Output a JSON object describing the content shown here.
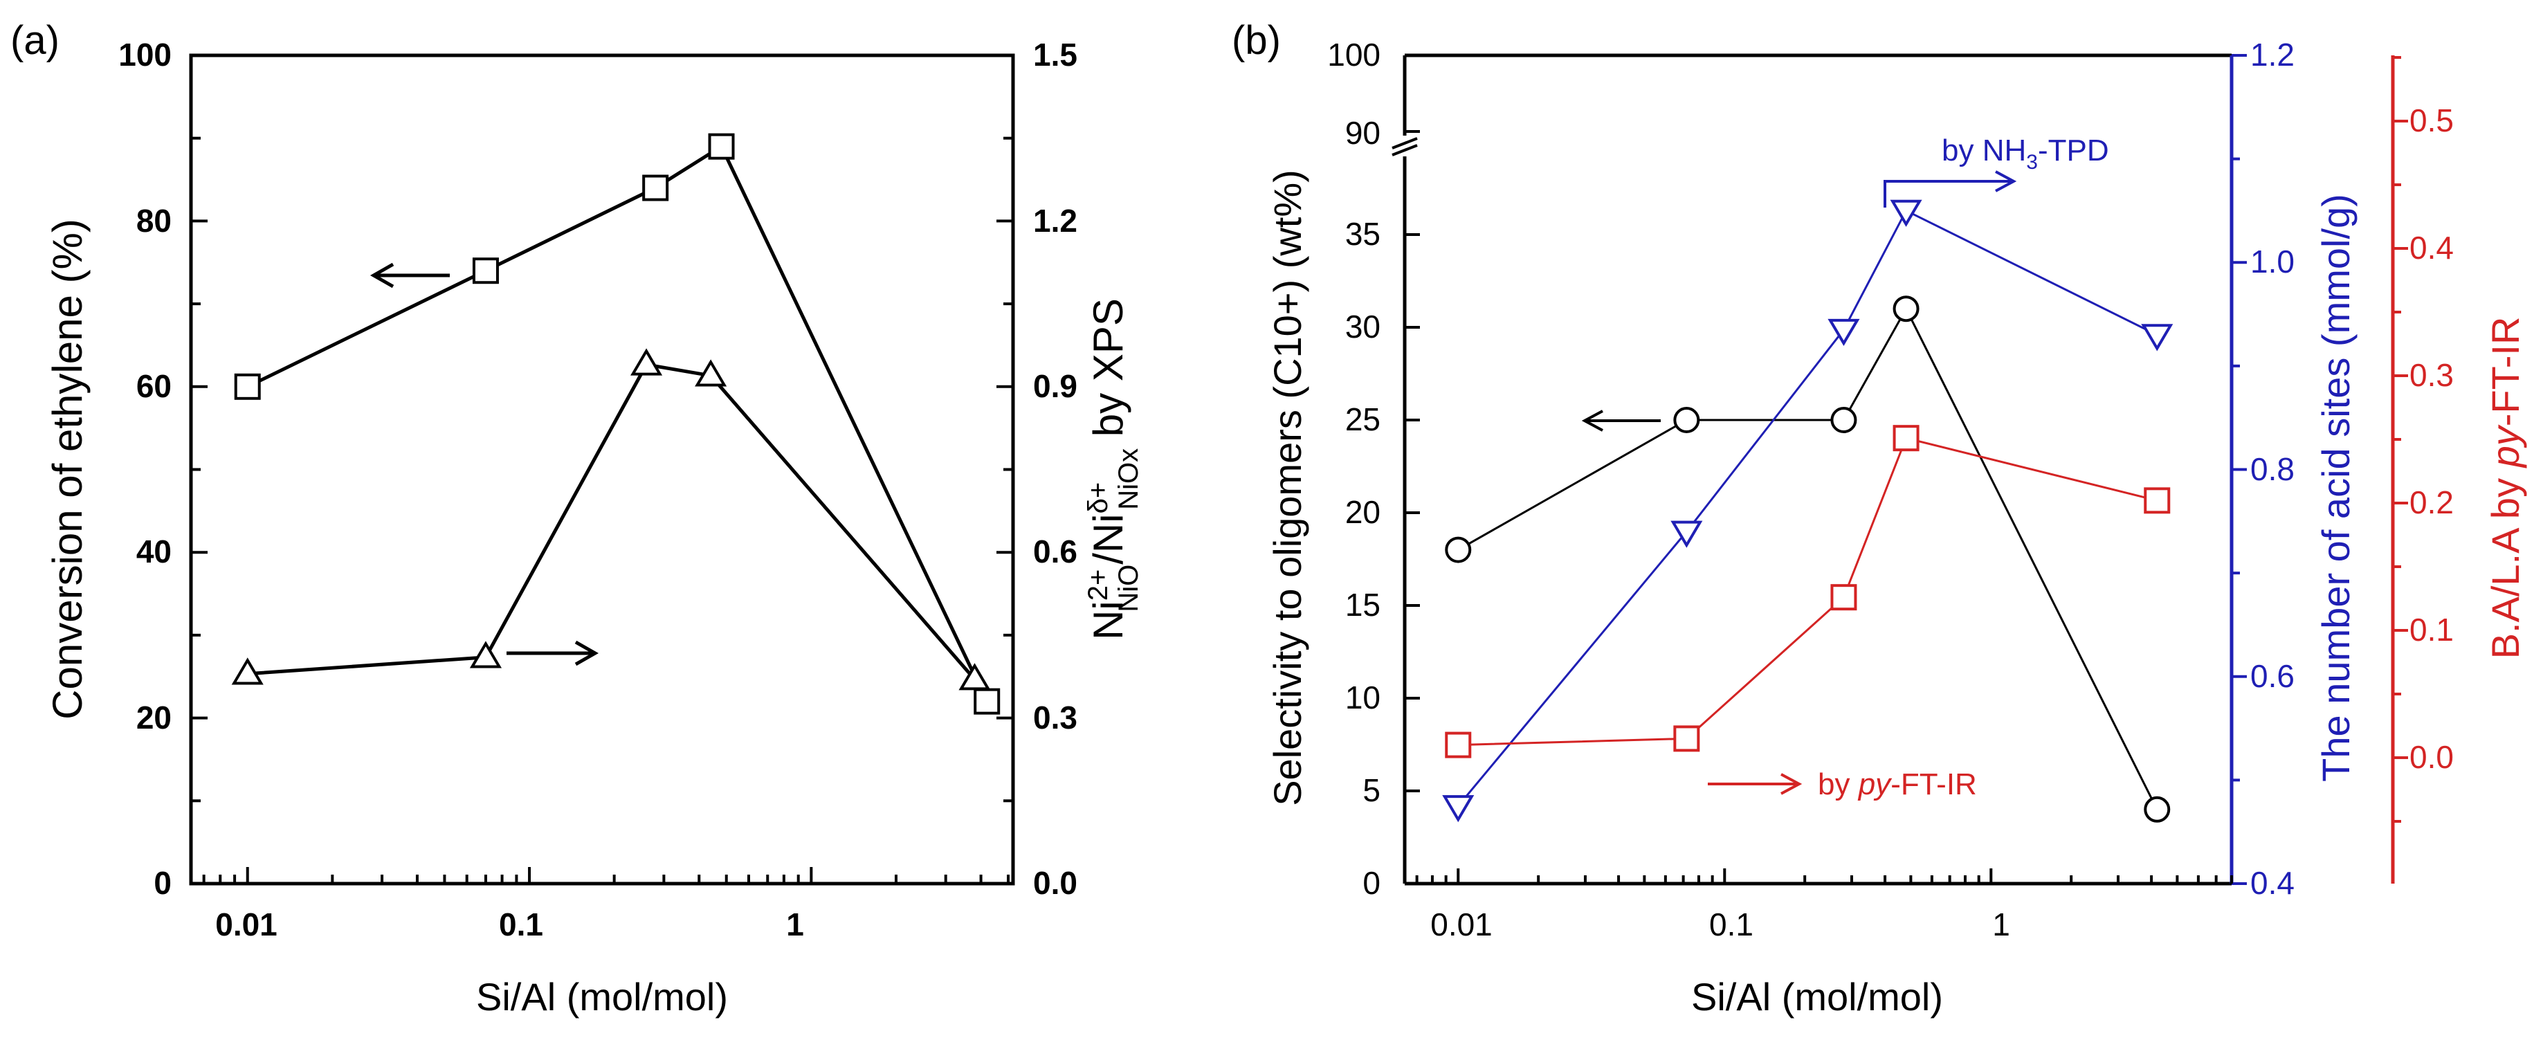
{
  "colors": {
    "black": "#000000",
    "blue": "#1f1fb4",
    "red": "#d42424"
  },
  "chart_data": [
    {
      "panel_label": "(a)",
      "type": "line",
      "xscale": "log",
      "xlim": [
        0.0063,
        5.2
      ],
      "xticks": [
        "0.01",
        "0.1",
        "1"
      ],
      "xlabel": "Si/Al (mol/mol)",
      "y_left": {
        "label": "Conversion of ethylene (%)",
        "ylim": [
          0,
          100
        ],
        "ticks": [
          "0",
          "20",
          "40",
          "60",
          "80",
          "100"
        ]
      },
      "y_right": {
        "label_main": "Ni",
        "label_sup1": "2+",
        "label_sub1": "NiO",
        "label_sep": "/Ni",
        "label_sup2": "δ+",
        "label_sub2": "NiOx",
        "label_tail": " by XPS",
        "ylim": [
          0,
          1.5
        ],
        "ticks": [
          "0.0",
          "0.3",
          "0.6",
          "0.9",
          "1.2",
          "1.5"
        ]
      },
      "series": [
        {
          "name": "Conversion of ethylene",
          "axis": "left",
          "marker": "square",
          "x": [
            0.01,
            0.07,
            0.28,
            0.48,
            4.2
          ],
          "y": [
            60,
            74,
            84,
            89,
            22
          ]
        },
        {
          "name": "Ni2+ NiO / Ni δ+ NiOx by XPS",
          "axis": "right",
          "marker": "triangle-up",
          "x": [
            0.01,
            0.07,
            0.26,
            0.44,
            3.8
          ],
          "y": [
            0.38,
            0.41,
            0.94,
            0.92,
            0.37
          ]
        }
      ]
    },
    {
      "panel_label": "(b)",
      "type": "line",
      "xscale": "log",
      "xlim": [
        0.0063,
        8.0
      ],
      "xticks": [
        "0.01",
        "0.1",
        "1"
      ],
      "xlabel": "Si/Al (mol/mol)",
      "y_left": {
        "label": "Selectivity to oligomers (C10+) (wt%)",
        "ylim": [
          0,
          100
        ],
        "axis_break": [
          38,
          88
        ],
        "ticks": [
          "0",
          "5",
          "10",
          "15",
          "20",
          "25",
          "30",
          "35",
          "90",
          "100"
        ]
      },
      "y_right_1": {
        "label": "The number of acid sites (mmol/g)",
        "ylim": [
          0.4,
          1.2
        ],
        "ticks": [
          "0.4",
          "0.6",
          "0.8",
          "1.0",
          "1.2"
        ]
      },
      "y_right_2": {
        "label_prefix": "B.A/L.A by ",
        "label_italic": "py",
        "label_suffix": "-FT-IR",
        "ylim": [
          -0.1,
          0.55
        ],
        "ticks": [
          "0.0",
          "0.1",
          "0.2",
          "0.3",
          "0.4",
          "0.5"
        ]
      },
      "series": [
        {
          "name": "Selectivity to oligomers",
          "axis": "left",
          "marker": "circle",
          "x": [
            0.01,
            0.072,
            0.28,
            0.48,
            4.2
          ],
          "y": [
            18,
            25,
            25,
            31,
            4
          ]
        },
        {
          "name": "Acid sites by NH3-TPD",
          "axis": "right_1",
          "marker": "triangle-down",
          "x": [
            0.01,
            0.072,
            0.28,
            0.48,
            4.2
          ],
          "y": [
            0.475,
            0.74,
            0.935,
            1.05,
            0.93
          ]
        },
        {
          "name": "B.A/L.A by py-FT-IR",
          "axis": "right_2",
          "marker": "square",
          "x": [
            0.01,
            0.072,
            0.28,
            0.48,
            4.2
          ],
          "y": [
            0.01,
            0.015,
            0.126,
            0.251,
            0.202
          ]
        }
      ],
      "annotations": {
        "nh3_prefix": "by NH",
        "nh3_sub": "3",
        "nh3_suffix": "-TPD",
        "py_prefix": "by ",
        "py_italic": "py",
        "py_suffix": "-FT-IR"
      }
    }
  ]
}
